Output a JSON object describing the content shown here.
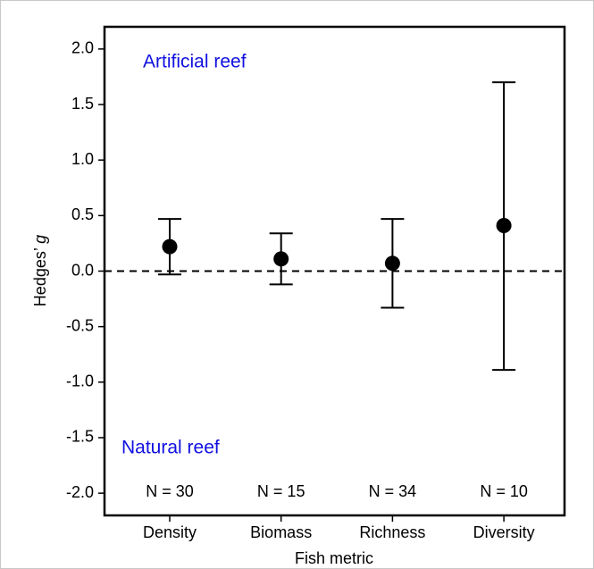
{
  "chart_data": {
    "type": "errorbar",
    "categories": [
      "Density",
      "Biomass",
      "Richness",
      "Diversity"
    ],
    "values": [
      0.22,
      0.11,
      0.07,
      0.41
    ],
    "lower": [
      -0.03,
      -0.12,
      -0.33,
      -0.89
    ],
    "upper": [
      0.47,
      0.34,
      0.47,
      1.7
    ],
    "color": "#000000",
    "n_labels": [
      "N = 30",
      "N = 15",
      "N = 34",
      "N = 10"
    ],
    "annotations": [
      "Artificial reef",
      "Natural reef"
    ],
    "x_label": "Fish metric",
    "y_label_parts": [
      "Hedges’ ",
      "g"
    ],
    "reference_line": 0,
    "ylim": [
      -2.2,
      2.2
    ],
    "yticks": [
      {
        "value": -2,
        "label": "-2.0"
      },
      {
        "value": -1.5,
        "label": "-1.5"
      },
      {
        "value": -1,
        "label": "-1.0"
      },
      {
        "value": -0.5,
        "label": "-0.5"
      },
      {
        "value": 0,
        "label": "0.0"
      },
      {
        "value": 0.5,
        "label": "0.5"
      },
      {
        "value": 1,
        "label": "1.0"
      },
      {
        "value": 1.5,
        "label": "1.5"
      },
      {
        "value": 2,
        "label": "2.0"
      }
    ]
  }
}
